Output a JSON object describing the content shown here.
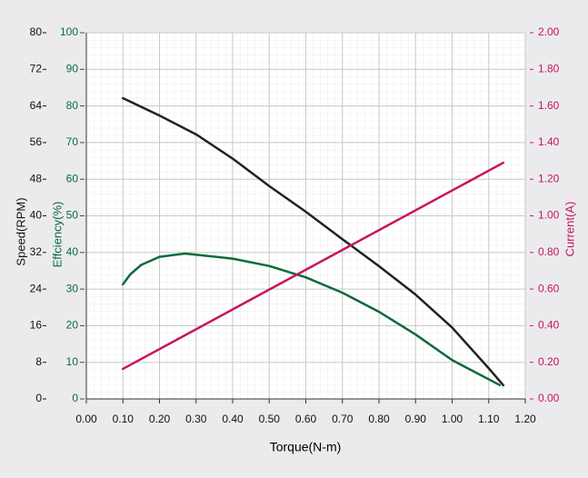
{
  "chart_data": {
    "type": "line",
    "x_label": "Torque(N-m)",
    "y_label": "Speed(RPM)",
    "y2_label": "Effciency(%)",
    "y3_label": "Current(A)",
    "xlim": [
      0,
      1.2
    ],
    "xticks": [
      {
        "value": 0,
        "label": "0.00"
      },
      {
        "value": 0.1,
        "label": "0.10"
      },
      {
        "value": 0.2,
        "label": "0.20"
      },
      {
        "value": 0.3,
        "label": "0.30"
      },
      {
        "value": 0.4,
        "label": "0.40"
      },
      {
        "value": 0.5,
        "label": "0.50"
      },
      {
        "value": 0.6,
        "label": "0.60"
      },
      {
        "value": 0.7,
        "label": "0.70"
      },
      {
        "value": 0.8,
        "label": "0.80"
      },
      {
        "value": 0.9,
        "label": "0.90"
      },
      {
        "value": 1,
        "label": "1.00"
      },
      {
        "value": 1.1,
        "label": "1.10"
      },
      {
        "value": 1.2,
        "label": "1.20"
      }
    ],
    "ylim": [
      0,
      80
    ],
    "yticks": [
      0,
      8,
      16,
      24,
      32,
      40,
      48,
      56,
      64,
      72,
      80
    ],
    "y2lim": [
      0,
      100
    ],
    "y2ticks": [
      0,
      10,
      20,
      30,
      40,
      50,
      60,
      70,
      80,
      90,
      100
    ],
    "y3lim": [
      0,
      2
    ],
    "y3ticks": [
      {
        "value": 0,
        "label": "0.00"
      },
      {
        "value": 0.2,
        "label": "0.20"
      },
      {
        "value": 0.4,
        "label": "0.40"
      },
      {
        "value": 0.6,
        "label": "0.60"
      },
      {
        "value": 0.8,
        "label": "0.80"
      },
      {
        "value": 1,
        "label": "1.00"
      },
      {
        "value": 1.2,
        "label": "1.20"
      },
      {
        "value": 1.4,
        "label": "1.40"
      },
      {
        "value": 1.6,
        "label": "1.60"
      },
      {
        "value": 1.8,
        "label": "1.80"
      },
      {
        "value": 2,
        "label": "2.00"
      }
    ],
    "grid": true,
    "series": [
      {
        "axis": "y",
        "color": "#222222",
        "x": [
          0.1,
          0.2,
          0.3,
          0.4,
          0.5,
          0.6,
          0.7,
          0.8,
          0.9,
          1.0,
          1.1,
          1.14
        ],
        "values": [
          65.7,
          61.9,
          57.8,
          52.5,
          46.5,
          40.9,
          34.9,
          29.0,
          22.8,
          15.6,
          6.7,
          3.0
        ]
      },
      {
        "axis": "y2",
        "color": "#0b6b3a",
        "x": [
          0.1,
          0.12,
          0.15,
          0.2,
          0.27,
          0.4,
          0.5,
          0.6,
          0.7,
          0.8,
          0.9,
          1.0,
          1.13
        ],
        "values": [
          31.3,
          34,
          36.6,
          38.8,
          39.7,
          38.3,
          36.3,
          33.2,
          29.0,
          23.8,
          17.6,
          10.6,
          3.8
        ]
      },
      {
        "axis": "y3",
        "color": "#c8135f",
        "x": [
          0.1,
          1.14
        ],
        "values": [
          0.164,
          1.29
        ]
      }
    ]
  }
}
